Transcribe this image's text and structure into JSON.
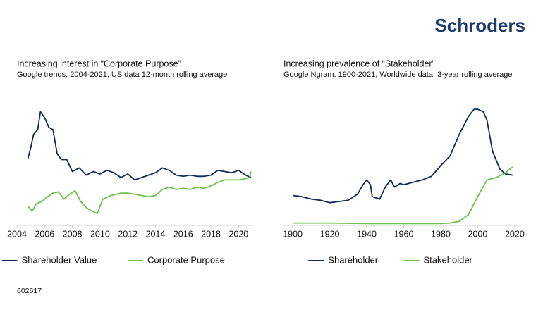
{
  "brand": "Schroders",
  "footnote": "602617",
  "chart_data": [
    {
      "type": "line",
      "title": "Increasing interest in “Corporate Purpose”",
      "subtitle": "Google trends, 2004-2021, US data 12-month rolling average",
      "xlim": [
        2004,
        2021
      ],
      "xticks": [
        2004,
        2006,
        2008,
        2010,
        2012,
        2014,
        2016,
        2018,
        2020
      ],
      "ylim": [
        0,
        100
      ],
      "legend": "bottom",
      "series": [
        {
          "name": "Shareholder Value",
          "color": "#0d2a5c",
          "x": [
            2004.8,
            2005.0,
            2005.2,
            2005.5,
            2005.7,
            2006.0,
            2006.3,
            2006.6,
            2006.9,
            2007.2,
            2007.6,
            2008.0,
            2008.5,
            2009.0,
            2009.5,
            2010.0,
            2010.5,
            2011.0,
            2011.5,
            2012.0,
            2012.5,
            2013.0,
            2013.5,
            2014.0,
            2014.5,
            2015.0,
            2015.5,
            2016.0,
            2016.5,
            2017.0,
            2017.5,
            2018.0,
            2018.5,
            2019.0,
            2019.5,
            2020.0,
            2020.5,
            2020.9
          ],
          "values": [
            56,
            65,
            76,
            80,
            95,
            90,
            82,
            80,
            60,
            55,
            55,
            45,
            48,
            42,
            45,
            43,
            46,
            44,
            40,
            43,
            38,
            40,
            42,
            44,
            48,
            46,
            42,
            41,
            42,
            41,
            41,
            42,
            46,
            45,
            44,
            46,
            42,
            40
          ]
        },
        {
          "name": "Corporate Purpose",
          "color": "#6cc24a",
          "x": [
            2004.8,
            2005.1,
            2005.4,
            2005.8,
            2006.2,
            2006.6,
            2007.0,
            2007.4,
            2007.8,
            2008.2,
            2008.6,
            2009.0,
            2009.4,
            2009.8,
            2010.2,
            2010.8,
            2011.5,
            2012.0,
            2012.5,
            2013.0,
            2013.5,
            2014.0,
            2014.5,
            2015.0,
            2015.5,
            2016.0,
            2016.5,
            2017.0,
            2017.5,
            2018.0,
            2018.5,
            2019.0,
            2019.5,
            2020.0,
            2020.5,
            2020.8,
            2020.9
          ],
          "values": [
            16,
            12,
            18,
            20,
            24,
            27,
            28,
            22,
            26,
            29,
            20,
            15,
            12,
            10,
            22,
            25,
            27,
            27,
            26,
            25,
            24,
            25,
            30,
            32,
            30,
            31,
            30,
            32,
            31,
            33,
            36,
            38,
            38,
            38,
            39,
            40,
            45
          ]
        }
      ]
    },
    {
      "type": "line",
      "title": "Increasing prevalence of “Stakeholder”",
      "subtitle": "Google Ngram, 1900-2021, Worldwide data, 3-year rolling average",
      "xlim": [
        1895,
        2025
      ],
      "xticks": [
        1900,
        1920,
        1940,
        1960,
        1980,
        2000,
        2020
      ],
      "ylim": [
        0,
        100
      ],
      "legend": "bottom",
      "series": [
        {
          "name": "Shareholder",
          "color": "#0d2a5c",
          "x": [
            1900,
            1905,
            1910,
            1915,
            1920,
            1925,
            1930,
            1935,
            1938,
            1940,
            1942,
            1943,
            1947,
            1950,
            1953,
            1955,
            1958,
            1960,
            1965,
            1970,
            1975,
            1980,
            1985,
            1990,
            1995,
            1998,
            2000,
            2003,
            2005,
            2008,
            2012,
            2015,
            2019
          ],
          "values": [
            25,
            24,
            22,
            21,
            19,
            20,
            21,
            26,
            34,
            38,
            34,
            24,
            22,
            32,
            38,
            32,
            35,
            34,
            36,
            38,
            41,
            50,
            58,
            76,
            91,
            97,
            97,
            95,
            88,
            62,
            47,
            43,
            42
          ]
        },
        {
          "name": "Stakeholder",
          "color": "#6cc24a",
          "x": [
            1900,
            1920,
            1940,
            1960,
            1980,
            1985,
            1990,
            1995,
            2000,
            2005,
            2010,
            2015,
            2019
          ],
          "values": [
            2,
            2,
            1.5,
            1.5,
            1.5,
            2,
            3.5,
            9,
            24,
            38,
            40,
            44,
            49
          ]
        }
      ]
    }
  ]
}
